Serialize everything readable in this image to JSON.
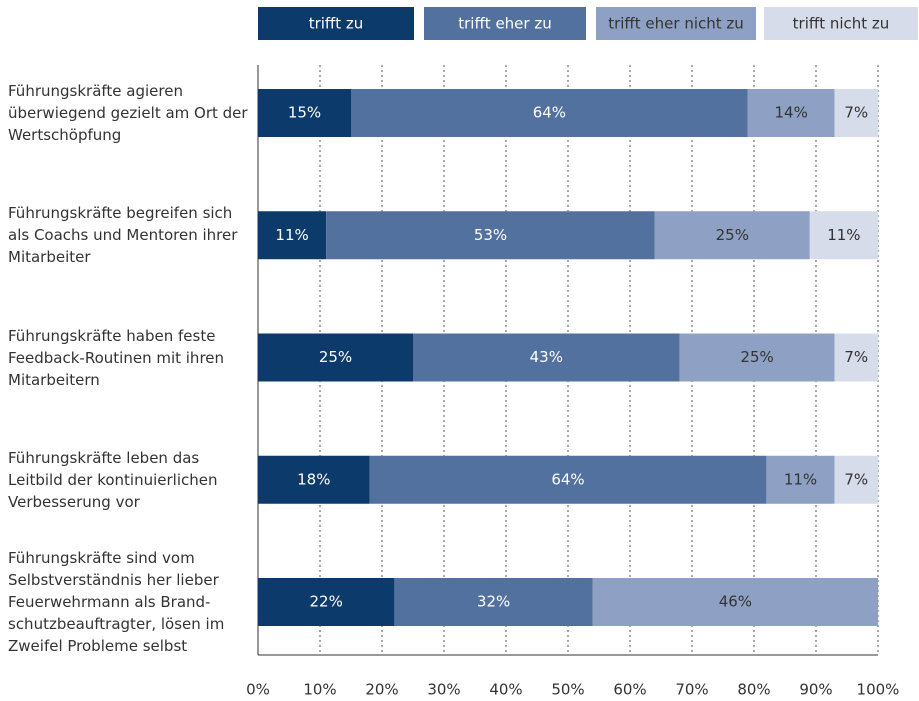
{
  "chart_data": {
    "type": "stacked_barh",
    "categories": [
      "Führungskräfte agieren überwiegend gezielt am Ort der Wertschöpfung",
      "Führungskräfte begreifen sich als Coachs und Mentoren ihrer Mitarbeiter",
      "Führungskräfte haben feste Feedback-Routinen mit ihren Mitarbeitern",
      "Führungskräfte leben das Leitbild der kontinuierlichen Verbesserung vor",
      "Führungskräfte sind vom Selbstverständnis her lieber Feuerwehrmann als Brand-schutzbeauftragter, lösen im Zweifel Probleme selbst"
    ],
    "series": [
      {
        "name": "trifft zu",
        "color": "#0c3a6b",
        "label_color": "#ffffff",
        "values": [
          15,
          11,
          25,
          18,
          22
        ],
        "value_labels": [
          "15%",
          "11%",
          "25%",
          "18%",
          "22%"
        ]
      },
      {
        "name": "trifft eher zu",
        "color": "#52719e",
        "label_color": "#ffffff",
        "values": [
          64,
          53,
          43,
          64,
          32
        ],
        "value_labels": [
          "64%",
          "53%",
          "43%",
          "64%",
          "32%"
        ]
      },
      {
        "name": "trifft eher nicht zu",
        "color": "#8ea1c4",
        "label_color": "#333333",
        "values": [
          14,
          25,
          25,
          11,
          46
        ],
        "value_labels": [
          "14%",
          "25%",
          "25%",
          "11%",
          "46%"
        ]
      },
      {
        "name": "trifft nicht zu",
        "color": "#d7dcea",
        "label_color": "#333333",
        "values": [
          7,
          11,
          7,
          7,
          null
        ],
        "value_labels": [
          "7%",
          "11%",
          "7%",
          "7%",
          null
        ]
      }
    ],
    "xlim": [
      0,
      100
    ],
    "xticks": [
      {
        "value": 0,
        "label": "0%"
      },
      {
        "value": 10,
        "label": "10%"
      },
      {
        "value": 20,
        "label": "20%"
      },
      {
        "value": 30,
        "label": "30%"
      },
      {
        "value": 40,
        "label": "40%"
      },
      {
        "value": 50,
        "label": "50%"
      },
      {
        "value": 60,
        "label": "60%"
      },
      {
        "value": 70,
        "label": "70%"
      },
      {
        "value": 80,
        "label": "80%"
      },
      {
        "value": 90,
        "label": "90%"
      },
      {
        "value": 100,
        "label": "100%"
      }
    ],
    "grid": true,
    "legend": "top"
  }
}
